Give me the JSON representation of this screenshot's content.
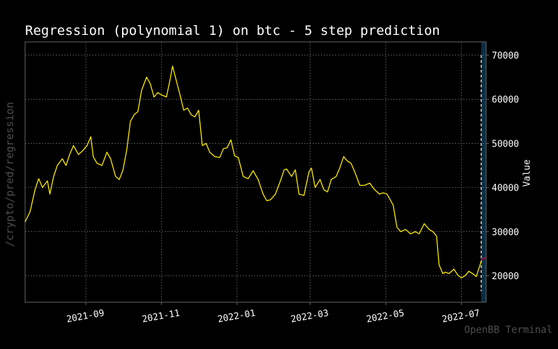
{
  "page": {
    "side_label": "/crypto/pred/regression",
    "watermark": "OpenBB Terminal"
  },
  "colors": {
    "background": "#000000",
    "grid": "#7f7f7f",
    "spine": "#666666",
    "history_line": "#ffee00",
    "prediction_line": "#e8004a",
    "forecast_band": "#0c2e45",
    "divider": "#ffffff"
  },
  "chart_data": {
    "type": "line",
    "title": "Regression (polynomial 1) on btc - 5 step prediction",
    "xlabel": "",
    "ylabel": "Value",
    "y_axis_side": "right",
    "ylim": [
      14000,
      73000
    ],
    "xlim": [
      "2021-07-14",
      "2022-07-21"
    ],
    "yticks": [
      20000,
      30000,
      40000,
      50000,
      60000,
      70000
    ],
    "xticks": [
      "2021-09",
      "2021-11",
      "2022-01",
      "2022-03",
      "2022-05",
      "2022-07"
    ],
    "grid": true,
    "forecast_start": "2022-07-17",
    "series": [
      {
        "role": "history",
        "x": [
          "2021-07-14",
          "2021-07-18",
          "2021-07-22",
          "2021-07-25",
          "2021-07-28",
          "2021-08-01",
          "2021-08-03",
          "2021-08-06",
          "2021-08-09",
          "2021-08-13",
          "2021-08-16",
          "2021-08-19",
          "2021-08-22",
          "2021-08-26",
          "2021-08-29",
          "2021-09-02",
          "2021-09-05",
          "2021-09-07",
          "2021-09-10",
          "2021-09-14",
          "2021-09-18",
          "2021-09-21",
          "2021-09-25",
          "2021-09-28",
          "2021-10-01",
          "2021-10-04",
          "2021-10-07",
          "2021-10-10",
          "2021-10-13",
          "2021-10-16",
          "2021-10-20",
          "2021-10-23",
          "2021-10-26",
          "2021-10-29",
          "2021-11-01",
          "2021-11-05",
          "2021-11-08",
          "2021-11-10",
          "2021-11-13",
          "2021-11-16",
          "2021-11-19",
          "2021-11-22",
          "2021-11-25",
          "2021-11-28",
          "2021-12-01",
          "2021-12-04",
          "2021-12-07",
          "2021-12-10",
          "2021-12-14",
          "2021-12-18",
          "2021-12-21",
          "2021-12-24",
          "2021-12-27",
          "2021-12-30",
          "2022-01-02",
          "2022-01-06",
          "2022-01-10",
          "2022-01-14",
          "2022-01-18",
          "2022-01-22",
          "2022-01-25",
          "2022-01-28",
          "2022-02-01",
          "2022-02-05",
          "2022-02-08",
          "2022-02-10",
          "2022-02-14",
          "2022-02-17",
          "2022-02-20",
          "2022-02-24",
          "2022-02-28",
          "2022-03-02",
          "2022-03-05",
          "2022-03-09",
          "2022-03-12",
          "2022-03-15",
          "2022-03-18",
          "2022-03-22",
          "2022-03-25",
          "2022-03-28",
          "2022-03-31",
          "2022-04-03",
          "2022-04-06",
          "2022-04-10",
          "2022-04-14",
          "2022-04-18",
          "2022-04-22",
          "2022-04-26",
          "2022-04-29",
          "2022-05-02",
          "2022-05-05",
          "2022-05-07",
          "2022-05-10",
          "2022-05-13",
          "2022-05-17",
          "2022-05-21",
          "2022-05-25",
          "2022-05-28",
          "2022-06-01",
          "2022-06-05",
          "2022-06-08",
          "2022-06-11",
          "2022-06-13",
          "2022-06-16",
          "2022-06-18",
          "2022-06-21",
          "2022-06-25",
          "2022-06-28",
          "2022-07-01",
          "2022-07-04",
          "2022-07-07",
          "2022-07-10",
          "2022-07-13",
          "2022-07-15",
          "2022-07-17"
        ],
        "values": [
          32200,
          34500,
          39500,
          42000,
          40000,
          41500,
          38500,
          42500,
          45000,
          46500,
          45000,
          47500,
          49500,
          47500,
          48200,
          49500,
          51500,
          47000,
          45500,
          45000,
          48000,
          46500,
          42500,
          41800,
          44000,
          48500,
          55000,
          56500,
          57200,
          62000,
          65000,
          63500,
          60500,
          61500,
          61000,
          60500,
          64500,
          67500,
          64200,
          61000,
          57500,
          58000,
          56500,
          56000,
          57500,
          49500,
          50000,
          48000,
          47000,
          46800,
          48800,
          49000,
          50800,
          47200,
          46800,
          42500,
          42000,
          43800,
          41800,
          38500,
          37000,
          37200,
          38500,
          41500,
          44000,
          44200,
          42500,
          44000,
          38500,
          38200,
          43500,
          44400,
          40000,
          41800,
          39500,
          39000,
          41800,
          42500,
          44500,
          47000,
          46000,
          45500,
          43500,
          40500,
          40500,
          41000,
          39500,
          38500,
          38800,
          38500,
          37000,
          36000,
          31000,
          30000,
          30500,
          29500,
          30000,
          29500,
          31800,
          30500,
          30000,
          29000,
          22500,
          20500,
          20800,
          20500,
          21500,
          20200,
          19500,
          20000,
          21000,
          20500,
          19800,
          21500,
          23300
        ]
      },
      {
        "role": "prediction",
        "x": [
          "2022-07-17",
          "2022-07-18",
          "2022-07-19",
          "2022-07-20",
          "2022-07-21"
        ],
        "values": [
          23600,
          23700,
          23900,
          24000,
          24200
        ]
      }
    ]
  }
}
